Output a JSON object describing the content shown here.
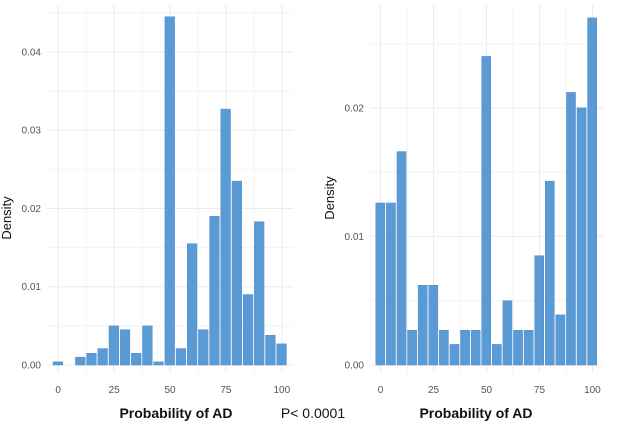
{
  "p_value": "P< 0.0001",
  "colors": {
    "bar": "#5b9bd5",
    "bar_edge": "#4a8bcc",
    "grid": "#ebebeb",
    "panel_bg": "#f7f7f7"
  },
  "chart_data": [
    {
      "type": "bar",
      "title": "",
      "xlabel": "Probability of AD",
      "ylabel": "Density",
      "xlim": [
        -5,
        105
      ],
      "ylim": [
        0,
        0.046
      ],
      "x_ticks": [
        0,
        25,
        50,
        75,
        100
      ],
      "x_tick_labels": [
        "0",
        "25",
        "50",
        "75",
        "100"
      ],
      "y_ticks": [
        0,
        0.01,
        0.02,
        0.03,
        0.04
      ],
      "y_tick_labels": [
        "0.00",
        "0.01",
        "0.02",
        "0.03",
        "0.04"
      ],
      "bin_width": 5,
      "bin_centers": [
        0,
        5,
        10,
        15,
        20,
        25,
        30,
        35,
        40,
        45,
        50,
        55,
        60,
        65,
        70,
        75,
        80,
        85,
        90,
        95,
        100
      ],
      "values": [
        0.0004,
        0,
        0.001,
        0.0015,
        0.0021,
        0.005,
        0.0045,
        0.0015,
        0.005,
        0.0004,
        0.0445,
        0.0021,
        0.0155,
        0.0045,
        0.019,
        0.0327,
        0.0235,
        0.009,
        0.0183,
        0.0038,
        0.0027
      ]
    },
    {
      "type": "bar",
      "title": "",
      "xlabel": "Probability of AD",
      "ylabel": "Density",
      "xlim": [
        -5,
        105
      ],
      "ylim": [
        0,
        0.028
      ],
      "x_ticks": [
        0,
        25,
        50,
        75,
        100
      ],
      "x_tick_labels": [
        "0",
        "25",
        "50",
        "75",
        "100"
      ],
      "y_ticks": [
        0,
        0.01,
        0.02
      ],
      "y_tick_labels": [
        "0.00",
        "0.01",
        "0.02"
      ],
      "bin_width": 5,
      "bin_centers": [
        0,
        5,
        10,
        15,
        20,
        25,
        30,
        35,
        40,
        45,
        50,
        55,
        60,
        65,
        70,
        75,
        80,
        85,
        90,
        95,
        100
      ],
      "values": [
        0.0126,
        0.0126,
        0.0166,
        0.0027,
        0.0062,
        0.0062,
        0.0027,
        0.0016,
        0.0027,
        0.0027,
        0.024,
        0.0016,
        0.005,
        0.0027,
        0.0027,
        0.0085,
        0.0143,
        0.0039,
        0.0212,
        0.02,
        0.027
      ]
    }
  ]
}
